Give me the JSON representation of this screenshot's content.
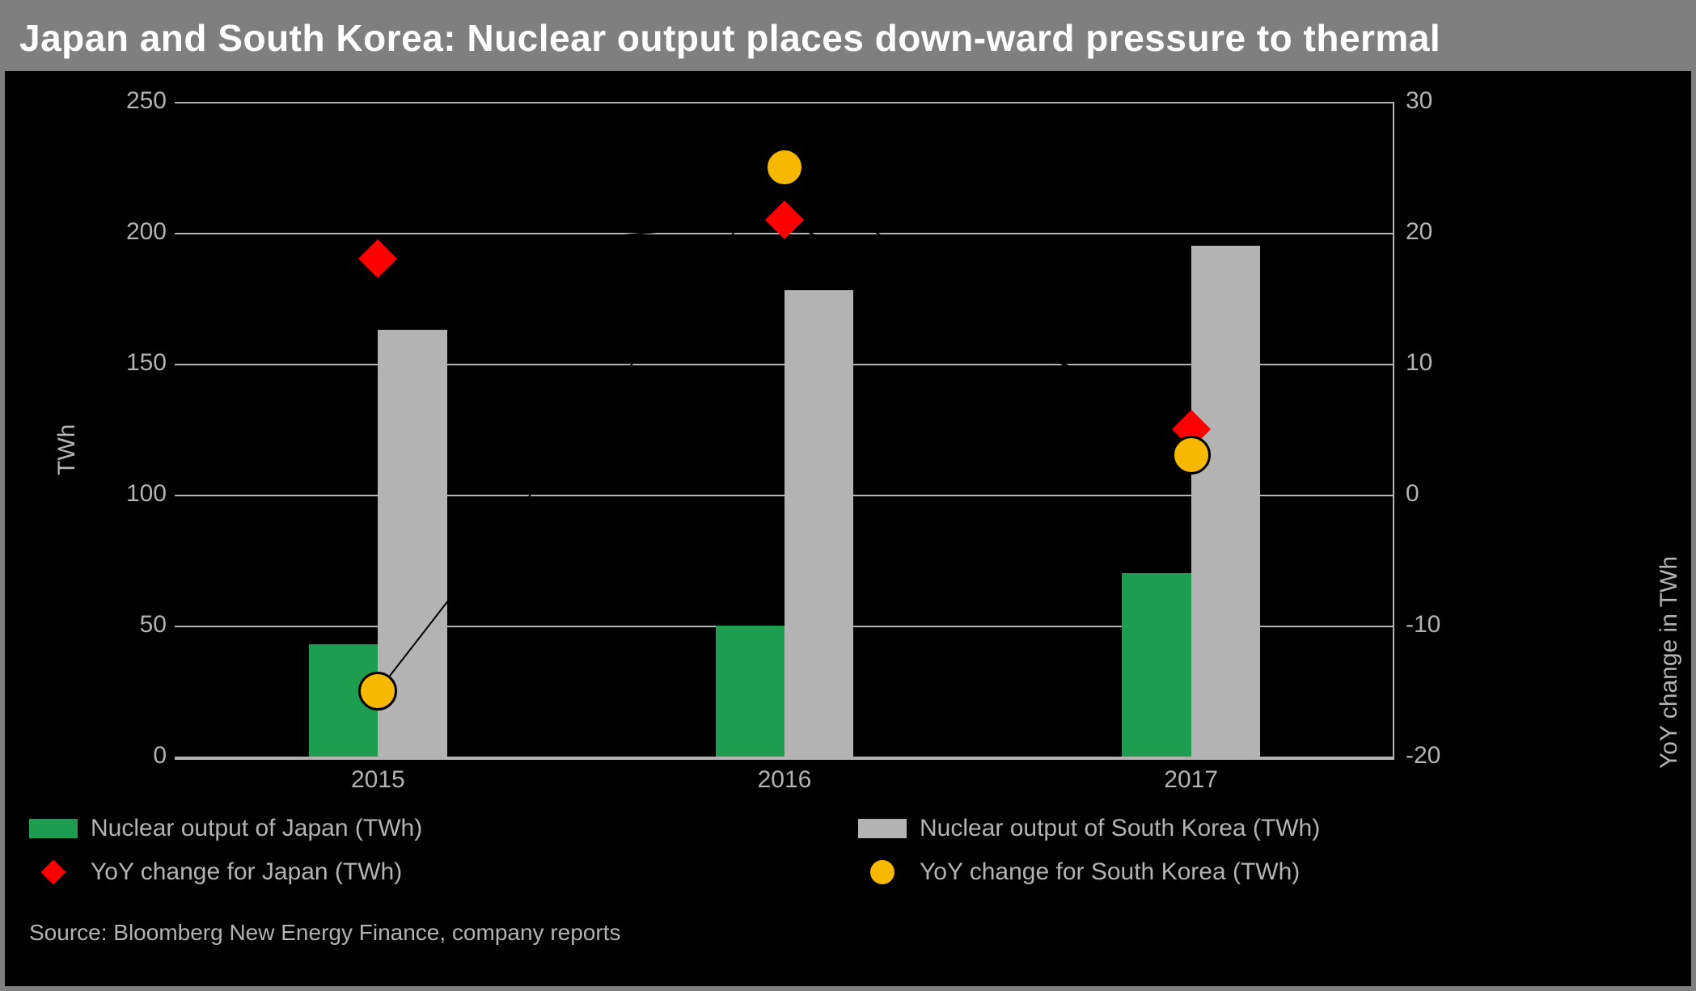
{
  "title": "Japan and South Korea: Nuclear output places down-ward pressure to thermal",
  "chart": {
    "type": "grouped-bar-with-markers",
    "background_color": "#000000",
    "grid_color": "#b3b3b3",
    "categories": [
      "2015",
      "2016",
      "2017"
    ],
    "left_axis": {
      "title": "TWh",
      "min": 0,
      "max": 250,
      "step": 50,
      "ticks": [
        0,
        50,
        100,
        150,
        200,
        250
      ],
      "label_color": "#b3b3b3",
      "title_fontsize": 30
    },
    "right_axis": {
      "title": "YoY change in TWh",
      "min": -20,
      "max": 30,
      "step": 10,
      "ticks": [
        -20,
        -10,
        0,
        10,
        20,
        30
      ],
      "label_color": "#b3b3b3",
      "title_fontsize": 30
    },
    "bars": {
      "bar_width_frac": 0.17,
      "group_gap_frac": 0.08,
      "series": [
        {
          "name": "Nuclear output of Japan (TWh)",
          "color": "#1e9c50",
          "values": [
            43,
            50,
            70
          ],
          "axis": "left"
        },
        {
          "name": "Nuclear output of South Korea (TWh)",
          "color": "#b3b3b3",
          "values": [
            163,
            178,
            195
          ],
          "axis": "left"
        }
      ]
    },
    "markers": {
      "series": [
        {
          "name": "YoY change for Japan (TWh)",
          "shape": "diamond",
          "color": "#ff0000",
          "size": 34,
          "values": [
            18,
            21,
            5
          ],
          "axis": "right",
          "line_color": "#000000",
          "line_width": 2
        },
        {
          "name": "YoY change for South Korea (TWh)",
          "shape": "circle",
          "color": "#f6b900",
          "border_color": "#000000",
          "size": 48,
          "values": [
            -15,
            25,
            3
          ],
          "axis": "right",
          "line_color": "#000000",
          "line_width": 2
        }
      ]
    }
  },
  "legend": {
    "items": [
      "Nuclear output of Japan (TWh)",
      "Nuclear output of South Korea (TWh)",
      "YoY change for Japan (TWh)",
      "YoY change for South Korea (TWh)"
    ]
  },
  "source": "Source: Bloomberg New Energy Finance, company reports"
}
